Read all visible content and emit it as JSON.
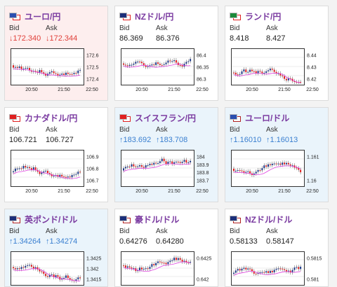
{
  "labels": {
    "bid": "Bid",
    "ask": "Ask"
  },
  "colors": {
    "up_candle": "#1f3a8a",
    "down_candle": "#e02020",
    "ma": "#e040e0",
    "ma2": "#40a0e0"
  },
  "cards": [
    {
      "pair": "ユーロ/円",
      "flag": [
        "#2b4fb0",
        "#e02020"
      ],
      "dir": "down",
      "bid": "172.340",
      "ask": "172.344",
      "y_ticks": [
        "172.6",
        "172.5",
        "172.4"
      ],
      "x_ticks": [
        "20:50",
        "21:50",
        "22:50"
      ]
    },
    {
      "pair": "NZドル/円",
      "flag": [
        "#1c2f7a",
        "#e02020"
      ],
      "dir": "neutral",
      "bid": "86.369",
      "ask": "86.376",
      "y_ticks": [
        "86.4",
        "86.35",
        "86.3"
      ],
      "x_ticks": [
        "20:50",
        "21:50",
        "22:50"
      ]
    },
    {
      "pair": "ランド/円",
      "flag": [
        "#1a8a3a",
        "#e02020"
      ],
      "dir": "neutral",
      "bid": "8.418",
      "ask": "8.427",
      "y_ticks": [
        "8.44",
        "8.43",
        "8.42"
      ],
      "x_ticks": [
        "20:50",
        "21:50",
        "22:50"
      ]
    },
    {
      "pair": "カナダドル/円",
      "flag": [
        "#e02020",
        "#e02020"
      ],
      "dir": "neutral",
      "bid": "106.721",
      "ask": "106.727",
      "y_ticks": [
        "106.9",
        "106.8",
        "106.7"
      ],
      "x_ticks": [
        "20:50",
        "21:50",
        "22:50"
      ]
    },
    {
      "pair": "スイスフラン/円",
      "flag": [
        "#e02020",
        "#e02020"
      ],
      "dir": "up",
      "bid": "183.692",
      "ask": "183.708",
      "y_ticks": [
        "184",
        "183.9",
        "183.8",
        "183.7"
      ],
      "x_ticks": [
        "20:50",
        "21:50",
        "22:50"
      ]
    },
    {
      "pair": "ユーロ/ドル",
      "flag": [
        "#2b4fb0",
        "#b02020"
      ],
      "dir": "up",
      "bid": "1.16010",
      "ask": "1.16013",
      "y_ticks": [
        "1.161",
        "1.16"
      ],
      "x_ticks": [
        "20:50",
        "21:50",
        "22:50"
      ]
    },
    {
      "pair": "英ポンド/ドル",
      "flag": [
        "#1c2f7a",
        "#b02020"
      ],
      "dir": "up",
      "bid": "1.34264",
      "ask": "1.34274",
      "y_ticks": [
        "1.3425",
        "1.342",
        "1.3415"
      ],
      "x_ticks": []
    },
    {
      "pair": "豪ドル/ドル",
      "flag": [
        "#1c2f7a",
        "#b02020"
      ],
      "dir": "neutral",
      "bid": "0.64276",
      "ask": "0.64280",
      "y_ticks": [
        "0.6425",
        "0.642"
      ],
      "x_ticks": []
    },
    {
      "pair": "NZドル/ドル",
      "flag": [
        "#1c2f7a",
        "#b02020"
      ],
      "dir": "neutral",
      "bid": "0.58133",
      "ask": "0.58147",
      "y_ticks": [
        "0.5815",
        "0.581"
      ],
      "x_ticks": []
    }
  ]
}
